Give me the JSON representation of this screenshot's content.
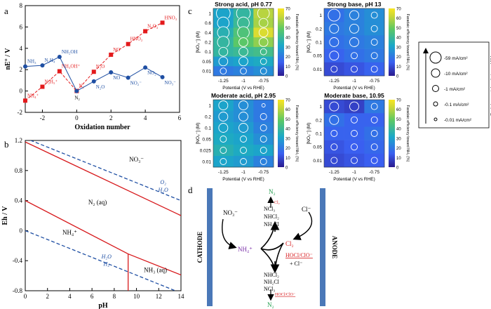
{
  "panels": {
    "a": {
      "letter": "a"
    },
    "b": {
      "letter": "b"
    },
    "c": {
      "letter": "c"
    },
    "d": {
      "letter": "d"
    }
  },
  "chart_data": [
    {
      "id": "a",
      "type": "scatter",
      "xlabel": "Oxidation number",
      "ylabel": "nE° / V",
      "xlim": [
        -3,
        6
      ],
      "ylim": [
        -2,
        8
      ],
      "xticks": [
        "-2",
        "0",
        "2",
        "4",
        "6"
      ],
      "yticks": [
        "-2",
        "0",
        "2",
        "4",
        "6",
        "8"
      ],
      "series": [
        {
          "color": "#e31a1c",
          "marker": "square",
          "points": [
            {
              "x": -3,
              "y": -0.9,
              "label": "NH₄⁺"
            },
            {
              "x": -2,
              "y": 0.4,
              "label": "N₂H₅⁺"
            },
            {
              "x": -1,
              "y": 1.85,
              "label": "NH₃OH⁺"
            },
            {
              "x": 0,
              "y": 0,
              "label": "N₂"
            },
            {
              "x": 1,
              "y": 1.8,
              "label": "N₂O"
            },
            {
              "x": 2,
              "y": 3.4,
              "label": "NO"
            },
            {
              "x": 3,
              "y": 4.4,
              "label": "HNO₂"
            },
            {
              "x": 4,
              "y": 5.6,
              "label": "N₂O₄"
            },
            {
              "x": 5,
              "y": 6.4,
              "label": "HNO₃"
            }
          ]
        },
        {
          "color": "#1f4fa3",
          "marker": "circle",
          "points": [
            {
              "x": -3,
              "y": 2.3,
              "label": "NH₃"
            },
            {
              "x": -2,
              "y": 2.4,
              "label": "N₂H₄"
            },
            {
              "x": -1,
              "y": 3.2,
              "label": "NH₂OH"
            },
            {
              "x": 0,
              "y": 0,
              "label": ""
            },
            {
              "x": 1,
              "y": 0.9,
              "label": "N₂O"
            },
            {
              "x": 2,
              "y": 1.75,
              "label": "NO"
            },
            {
              "x": 3,
              "y": 1.25,
              "label": "NO₂⁻"
            },
            {
              "x": 4,
              "y": 2.2,
              "label": "NO₂"
            },
            {
              "x": 5,
              "y": 1.3,
              "label": "NO₃⁻"
            }
          ]
        }
      ]
    },
    {
      "id": "b",
      "type": "line",
      "xlabel": "pH",
      "ylabel": "Eh / V",
      "xlim": [
        0,
        14
      ],
      "ylim": [
        -0.8,
        1.2
      ],
      "xticks": [
        "0",
        "2",
        "4",
        "6",
        "8",
        "10",
        "12",
        "14"
      ],
      "yticks": [
        "-0.8",
        "-0.4",
        "0",
        "0.4",
        "0.8",
        "1.2"
      ],
      "lines": [
        {
          "color": "#d7191c",
          "style": "solid",
          "x": [
            0,
            14
          ],
          "y": [
            1.18,
            0.2
          ]
        },
        {
          "color": "#d7191c",
          "style": "solid",
          "x": [
            0,
            9.25
          ],
          "y": [
            0.4,
            -0.31
          ]
        },
        {
          "color": "#d7191c",
          "style": "solid",
          "x": [
            9.25,
            14
          ],
          "y": [
            -0.31,
            -0.59
          ]
        },
        {
          "color": "#d7191c",
          "style": "solid",
          "x": [
            9.25,
            9.25
          ],
          "y": [
            -0.31,
            -0.8
          ]
        },
        {
          "color": "#1f4fa3",
          "style": "dashed",
          "x": [
            0,
            14
          ],
          "y": [
            1.23,
            0.4
          ]
        },
        {
          "color": "#1f4fa3",
          "style": "dashed",
          "x": [
            0,
            14
          ],
          "y": [
            0.0,
            -0.83
          ]
        }
      ],
      "region_labels": [
        {
          "text": "NO₃⁻",
          "x": 10,
          "y": 0.92
        },
        {
          "text": "N₂ (aq)",
          "x": 6.5,
          "y": 0.35
        },
        {
          "text": "NH₄⁺",
          "x": 4,
          "y": -0.05
        },
        {
          "text": "NH₃ (aq)",
          "x": 11.7,
          "y": -0.55
        }
      ],
      "line_labels": [
        {
          "text": "O₂",
          "x": 12.4,
          "y": 0.62,
          "color": "#1f4fa3"
        },
        {
          "text": "H₂O",
          "x": 12.4,
          "y": 0.52,
          "color": "#1f4fa3"
        },
        {
          "text": "H₂O",
          "x": 7.3,
          "y": -0.37,
          "color": "#1f4fa3"
        },
        {
          "text": "H₂",
          "x": 7.3,
          "y": -0.47,
          "color": "#1f4fa3"
        }
      ]
    },
    {
      "id": "c",
      "type": "heatmap",
      "colorbar_label": "Faradaic efficiency toward NH₃ (%)",
      "colorbar_ticks": [
        0,
        10,
        20,
        30,
        40,
        50,
        60,
        70
      ],
      "x_categories": [
        "-1.25",
        "-1",
        "-0.75"
      ],
      "xlabel": "Potential (V vs RHE)",
      "ylabel": "[NO₃⁻] (M)",
      "subplots": [
        {
          "title": "Strong acid, pH 0.77",
          "y_categories": [
            "1",
            "0.6",
            "0.4",
            "0.2",
            "0.1",
            "0.05",
            "0.01"
          ],
          "values": [
            [
              30,
              38,
              60
            ],
            [
              30,
              40,
              58
            ],
            [
              35,
              45,
              65
            ],
            [
              38,
              48,
              55
            ],
            [
              38,
              40,
              42
            ],
            [
              28,
              30,
              32
            ],
            [
              20,
              22,
              25
            ]
          ],
          "bubbles": [
            [
              5,
              5,
              4
            ],
            [
              4,
              4,
              3
            ],
            [
              4,
              4,
              3
            ],
            [
              4,
              3,
              3
            ],
            [
              3,
              3,
              2
            ],
            [
              3,
              3,
              2
            ],
            [
              2,
              2,
              2
            ]
          ]
        },
        {
          "title": "Strong base, pH 13",
          "y_categories": [
            "1",
            "0.2",
            "0.1",
            "0.05",
            "0.01"
          ],
          "values": [
            [
              18,
              22,
              25
            ],
            [
              20,
              22,
              25
            ],
            [
              18,
              20,
              22
            ],
            [
              15,
              18,
              20
            ],
            [
              10,
              12,
              15
            ]
          ],
          "bubbles": [
            [
              4,
              3,
              2
            ],
            [
              3,
              3,
              2
            ],
            [
              3,
              3,
              2
            ],
            [
              3,
              2,
              2
            ],
            [
              2,
              2,
              2
            ]
          ]
        },
        {
          "title": "Moderate acid, pH 2.95",
          "y_categories": [
            "1",
            "0.2",
            "0.1",
            "0.05",
            "0.025",
            "0.01"
          ],
          "values": [
            [
              30,
              25,
              20
            ],
            [
              28,
              25,
              20
            ],
            [
              30,
              28,
              22
            ],
            [
              32,
              30,
              25
            ],
            [
              35,
              32,
              30
            ],
            [
              30,
              28,
              22
            ]
          ],
          "bubbles": [
            [
              3,
              3,
              1
            ],
            [
              3,
              3,
              2
            ],
            [
              3,
              3,
              2
            ],
            [
              2,
              2,
              2
            ],
            [
              2,
              2,
              2
            ],
            [
              2,
              2,
              2
            ]
          ]
        },
        {
          "title": "Moderate base, 10.95",
          "y_categories": [
            "1",
            "0.2",
            "0.1",
            "0.05",
            "0.01"
          ],
          "values": [
            [
              10,
              8,
              20
            ],
            [
              18,
              15,
              15
            ],
            [
              15,
              15,
              18
            ],
            [
              12,
              14,
              16
            ],
            [
              10,
              12,
              14
            ]
          ],
          "bubbles": [
            [
              3,
              3,
              2
            ],
            [
              3,
              2,
              2
            ],
            [
              2,
              2,
              2
            ],
            [
              2,
              2,
              2
            ],
            [
              2,
              2,
              2
            ]
          ]
        }
      ],
      "legend": {
        "title": "Partial current density toward NH₃",
        "entries": [
          "-59 mA/cm²",
          "-10 mA/cm²",
          "-1 mA/cm²",
          "-0.1 mA/cm²",
          "-0.01 mA/cm²"
        ]
      }
    }
  ],
  "diagram_d": {
    "cathode": "CATHODE",
    "anode": "ANODE",
    "no3": "NO₃⁻",
    "nh4": "NH₄⁺",
    "cl_minus": "Cl⁻",
    "cl2": "Cl₂",
    "hocl": "HOCl/ClO⁻",
    "plus_cl": "+ Cl⁻",
    "top_n2": "N₂",
    "top_cl2": "Cl₂",
    "top_species": [
      "NCl₃",
      "NHCl₂",
      "NH₂Cl"
    ],
    "bottom_species": [
      "NHCl₂",
      "NH₂Cl",
      "NCl₃"
    ],
    "bottom_hocl": "HOCl/ClO⁻",
    "bottom_n2": "N₂"
  }
}
